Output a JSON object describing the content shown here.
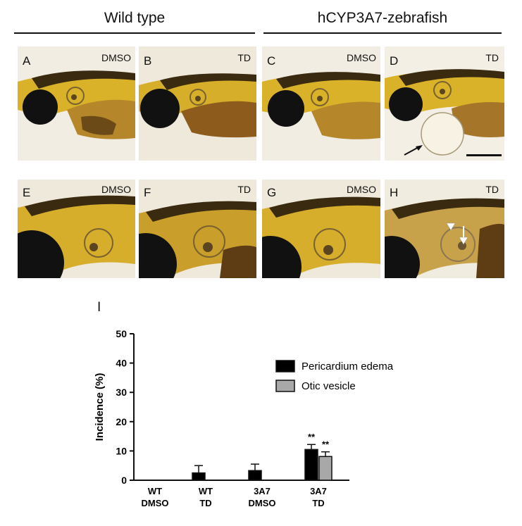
{
  "header": {
    "left_title": "Wild type",
    "right_title": "hCYP3A7-zebrafish"
  },
  "panels": [
    {
      "letter": "A",
      "treatment": "DMSO"
    },
    {
      "letter": "B",
      "treatment": "TD"
    },
    {
      "letter": "C",
      "treatment": "DMSO"
    },
    {
      "letter": "D",
      "treatment": "TD"
    },
    {
      "letter": "E",
      "treatment": "DMSO"
    },
    {
      "letter": "F",
      "treatment": "TD"
    },
    {
      "letter": "G",
      "treatment": "DMSO"
    },
    {
      "letter": "H",
      "treatment": "TD"
    }
  ],
  "chart_panel_letter": "I",
  "chart_data": {
    "type": "bar",
    "categories": [
      [
        "WT",
        "DMSO"
      ],
      [
        "WT",
        "TD"
      ],
      [
        "3A7",
        "DMSO"
      ],
      [
        "3A7",
        "TD"
      ]
    ],
    "ylabel": "Incidence  (%)",
    "ylim": [
      0,
      50
    ],
    "yticks": [
      0,
      10,
      20,
      30,
      40,
      50
    ],
    "series": [
      {
        "name": "Pericardium edema",
        "color": "#000000",
        "values": [
          0,
          2.5,
          3.3,
          10.5
        ],
        "errors": [
          0,
          2.5,
          2.2,
          1.7
        ]
      },
      {
        "name": "Otic vesicle",
        "color": "#a8a8a8",
        "values": [
          0,
          0,
          0,
          8.1
        ],
        "errors": [
          0,
          0,
          0,
          1.6
        ]
      }
    ],
    "annotations": [
      {
        "category_index": 3,
        "series_index": 0,
        "text": "**"
      },
      {
        "category_index": 3,
        "series_index": 1,
        "text": "**"
      }
    ],
    "legend_position": "right"
  }
}
